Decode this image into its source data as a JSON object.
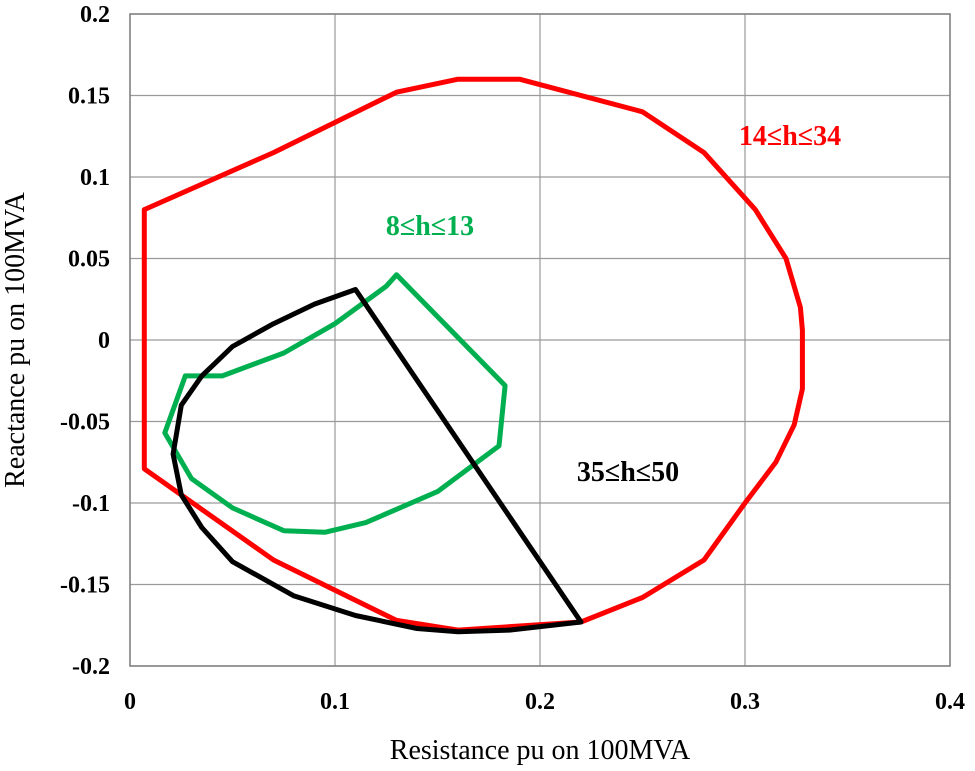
{
  "chart_data": {
    "type": "line",
    "title": "",
    "xlabel": "Resistance pu on 100MVA",
    "ylabel": "Reactance pu on 100MVA",
    "xlim": [
      0,
      0.4
    ],
    "ylim": [
      -0.2,
      0.2
    ],
    "x_ticks": [
      "0",
      "0.1",
      "0.2",
      "0.3",
      "0.4"
    ],
    "y_ticks": [
      "0.2",
      "0.15",
      "0.1",
      "0.05",
      "0",
      "-0.05",
      "-0.1",
      "-0.15",
      "-0.2"
    ],
    "x_tick_values": [
      0,
      0.1,
      0.2,
      0.3,
      0.4
    ],
    "y_tick_values": [
      0.2,
      0.15,
      0.1,
      0.05,
      0,
      -0.05,
      -0.1,
      -0.15,
      -0.2
    ],
    "grid": true,
    "series": [
      {
        "name": "14≤h≤34",
        "color": "#ff0000",
        "points": [
          [
            0.007,
            0.08
          ],
          [
            0.07,
            0.115
          ],
          [
            0.13,
            0.152
          ],
          [
            0.16,
            0.16
          ],
          [
            0.19,
            0.16
          ],
          [
            0.25,
            0.14
          ],
          [
            0.28,
            0.115
          ],
          [
            0.305,
            0.08
          ],
          [
            0.32,
            0.05
          ],
          [
            0.327,
            0.02
          ],
          [
            0.328,
            0.006
          ],
          [
            0.328,
            -0.03
          ],
          [
            0.324,
            -0.052
          ],
          [
            0.315,
            -0.075
          ],
          [
            0.3,
            -0.1
          ],
          [
            0.28,
            -0.135
          ],
          [
            0.25,
            -0.158
          ],
          [
            0.22,
            -0.173
          ],
          [
            0.16,
            -0.178
          ],
          [
            0.13,
            -0.172
          ],
          [
            0.07,
            -0.135
          ],
          [
            0.007,
            -0.079
          ],
          [
            0.007,
            0.08
          ]
        ]
      },
      {
        "name": "8≤h≤13",
        "color": "#00b050",
        "points": [
          [
            0.13,
            0.04
          ],
          [
            0.183,
            -0.028
          ],
          [
            0.18,
            -0.065
          ],
          [
            0.15,
            -0.093
          ],
          [
            0.115,
            -0.112
          ],
          [
            0.095,
            -0.118
          ],
          [
            0.075,
            -0.117
          ],
          [
            0.05,
            -0.103
          ],
          [
            0.03,
            -0.085
          ],
          [
            0.017,
            -0.057
          ],
          [
            0.027,
            -0.022
          ],
          [
            0.045,
            -0.022
          ],
          [
            0.075,
            -0.008
          ],
          [
            0.1,
            0.01
          ],
          [
            0.125,
            0.033
          ],
          [
            0.13,
            0.04
          ]
        ]
      },
      {
        "name": "35≤h≤50",
        "color": "#000000",
        "points": [
          [
            0.11,
            0.031
          ],
          [
            0.09,
            0.022
          ],
          [
            0.07,
            0.01
          ],
          [
            0.05,
            -0.004
          ],
          [
            0.035,
            -0.022
          ],
          [
            0.025,
            -0.04
          ],
          [
            0.021,
            -0.07
          ],
          [
            0.025,
            -0.095
          ],
          [
            0.035,
            -0.115
          ],
          [
            0.05,
            -0.136
          ],
          [
            0.08,
            -0.157
          ],
          [
            0.11,
            -0.169
          ],
          [
            0.14,
            -0.177
          ],
          [
            0.16,
            -0.179
          ],
          [
            0.185,
            -0.178
          ],
          [
            0.22,
            -0.173
          ],
          [
            0.11,
            0.031
          ]
        ]
      }
    ]
  }
}
